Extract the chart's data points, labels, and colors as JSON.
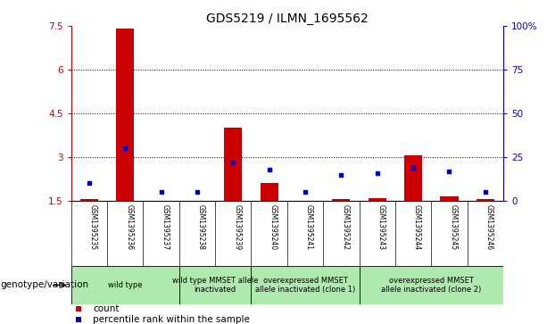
{
  "title": "GDS5219 / ILMN_1695562",
  "samples": [
    "GSM1395235",
    "GSM1395236",
    "GSM1395237",
    "GSM1395238",
    "GSM1395239",
    "GSM1395240",
    "GSM1395241",
    "GSM1395242",
    "GSM1395243",
    "GSM1395244",
    "GSM1395245",
    "GSM1395246"
  ],
  "bar_values": [
    1.55,
    7.4,
    1.5,
    1.5,
    4.0,
    2.1,
    1.5,
    1.55,
    1.6,
    3.05,
    1.65,
    1.55
  ],
  "blue_values_pct": [
    10,
    30,
    5,
    5,
    22,
    18,
    5,
    15,
    16,
    19,
    17,
    5
  ],
  "ylim_left": [
    1.5,
    7.5
  ],
  "ylim_right": [
    0,
    100
  ],
  "yticks_left": [
    1.5,
    3.0,
    4.5,
    6.0,
    7.5
  ],
  "ytick_labels_left": [
    "1.5",
    "3",
    "4.5",
    "6",
    "7.5"
  ],
  "yticks_right": [
    0,
    25,
    50,
    75,
    100
  ],
  "ytick_labels_right": [
    "0",
    "25",
    "50",
    "75",
    "100%"
  ],
  "bar_color": "#cc0000",
  "blue_color": "#0000cc",
  "bar_width": 0.5,
  "grid_color": "#000000",
  "group_labels": [
    "wild type",
    "wild type MMSET allele\ninactivated",
    "overexpressed MMSET\nallele inactivated (clone 1)",
    "overexpressed MMSET\nallele inactivated (clone 2)"
  ],
  "group_ranges": [
    [
      0,
      3
    ],
    [
      3,
      5
    ],
    [
      5,
      8
    ],
    [
      8,
      12
    ]
  ],
  "group_bg": "#aeeaae",
  "sample_cell_bg": "#d0d0d0",
  "legend_count_color": "#cc0000",
  "legend_pct_color": "#0000cc",
  "xlabel_genotype": "genotype/variation",
  "bg_outer": "#ffffff",
  "left_tick_color": "#cc0000",
  "right_tick_color": "#0000cc",
  "title_fontsize": 10,
  "tick_fontsize": 7.5,
  "sample_fontsize": 5.5,
  "group_fontsize": 6.0,
  "legend_fontsize": 7.5,
  "genotype_label_fontsize": 7.5
}
